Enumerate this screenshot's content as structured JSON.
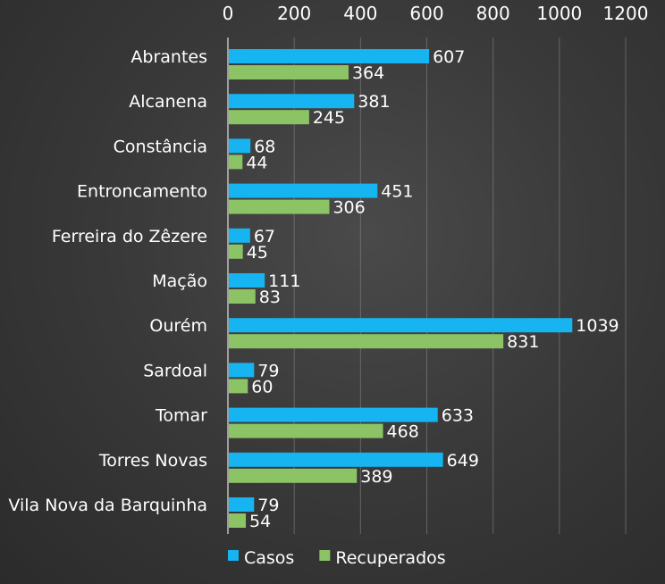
{
  "chart_data": {
    "type": "bar",
    "orientation": "horizontal",
    "categories": [
      "Abrantes",
      "Alcanena",
      "Constância",
      "Entroncamento",
      "Ferreira do Zêzere",
      "Mação",
      "Ourém",
      "Sardoal",
      "Tomar",
      "Torres Novas",
      "Vila Nova da Barquinha"
    ],
    "series": [
      {
        "name": "Casos",
        "color": "#16b4f0",
        "values": [
          607,
          381,
          68,
          451,
          67,
          111,
          1039,
          79,
          633,
          649,
          79
        ]
      },
      {
        "name": "Recuperados",
        "color": "#8cc365",
        "values": [
          364,
          245,
          44,
          306,
          45,
          83,
          831,
          60,
          468,
          389,
          54
        ]
      }
    ],
    "xlim": [
      0,
      1200
    ],
    "xticks": [
      0,
      200,
      400,
      600,
      800,
      1000,
      1200
    ],
    "x_axis_position": "top",
    "grid": true,
    "legend_position": "bottom-left"
  }
}
